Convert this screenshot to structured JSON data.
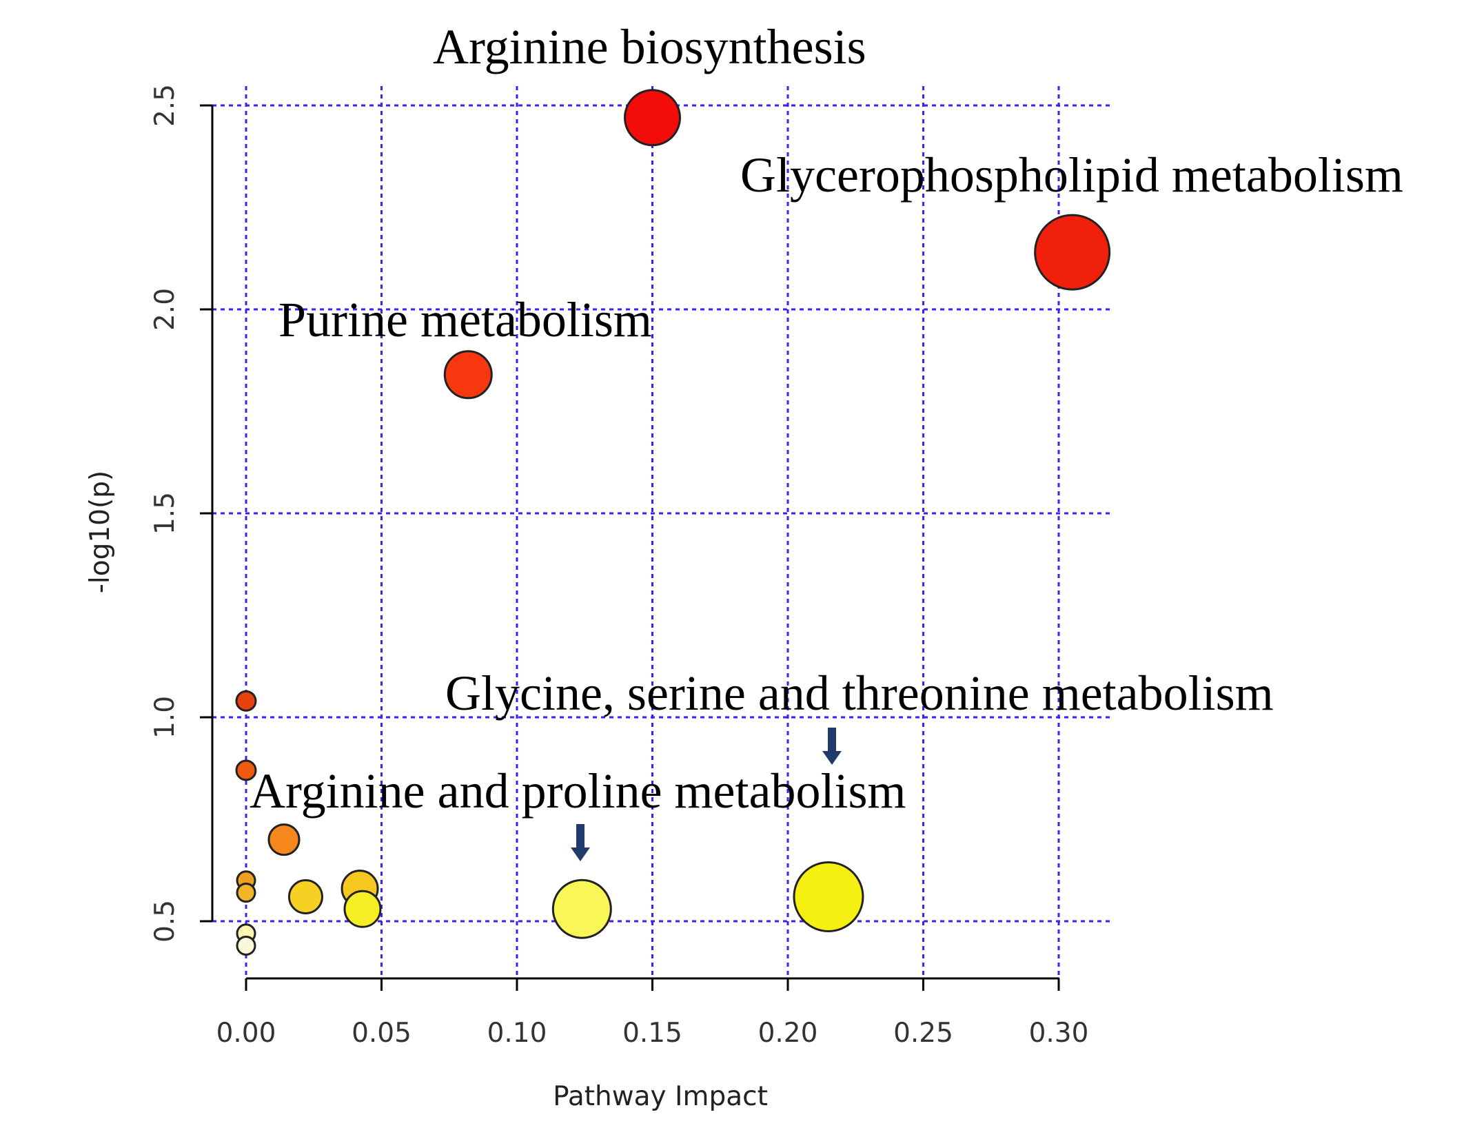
{
  "chart_data": {
    "type": "scatter",
    "title": "",
    "xlabel": "Pathway Impact",
    "ylabel": "-log10(p)",
    "xlim": [
      0,
      0.3
    ],
    "ylim": [
      0.4,
      2.5
    ],
    "xticks": [
      "0.00",
      "0.05",
      "0.10",
      "0.15",
      "0.20",
      "0.25",
      "0.30"
    ],
    "yticks": [
      "0.5",
      "1.0",
      "1.5",
      "2.0",
      "2.5"
    ],
    "grid": true,
    "points": [
      {
        "x": 0.15,
        "y": 2.47,
        "size": 40,
        "color": "#f20d0a"
      },
      {
        "x": 0.305,
        "y": 2.14,
        "size": 54,
        "color": "#f0200d"
      },
      {
        "x": 0.082,
        "y": 1.84,
        "size": 34,
        "color": "#f7380f"
      },
      {
        "x": 0.0,
        "y": 1.04,
        "size": 14,
        "color": "#e8420c"
      },
      {
        "x": 0.0,
        "y": 0.87,
        "size": 14,
        "color": "#ee5a10"
      },
      {
        "x": 0.014,
        "y": 0.7,
        "size": 22,
        "color": "#f5871c"
      },
      {
        "x": 0.0,
        "y": 0.6,
        "size": 13,
        "color": "#f0a020"
      },
      {
        "x": 0.0,
        "y": 0.57,
        "size": 13,
        "color": "#f2b52a"
      },
      {
        "x": 0.022,
        "y": 0.56,
        "size": 24,
        "color": "#f6d023"
      },
      {
        "x": 0.042,
        "y": 0.58,
        "size": 26,
        "color": "#f4c81f"
      },
      {
        "x": 0.043,
        "y": 0.53,
        "size": 26,
        "color": "#f6ee25"
      },
      {
        "x": 0.124,
        "y": 0.53,
        "size": 42,
        "color": "#f9f657"
      },
      {
        "x": 0.215,
        "y": 0.56,
        "size": 50,
        "color": "#f6f012"
      },
      {
        "x": 0.0,
        "y": 0.47,
        "size": 13,
        "color": "#faf5b0"
      },
      {
        "x": 0.0,
        "y": 0.44,
        "size": 13,
        "color": "#fbf7dc"
      }
    ],
    "annotations": [
      {
        "text": "Arginine biosynthesis"
      },
      {
        "text": "Glycerophospholipid metabolism"
      },
      {
        "text": "Purine metabolism"
      },
      {
        "text": "Glycine, serine and threonine metabolism"
      },
      {
        "text": "Arginine and proline metabolism"
      }
    ],
    "colors": {
      "grid": "#3b1ff5",
      "arrow": "#1f3a6b"
    }
  }
}
